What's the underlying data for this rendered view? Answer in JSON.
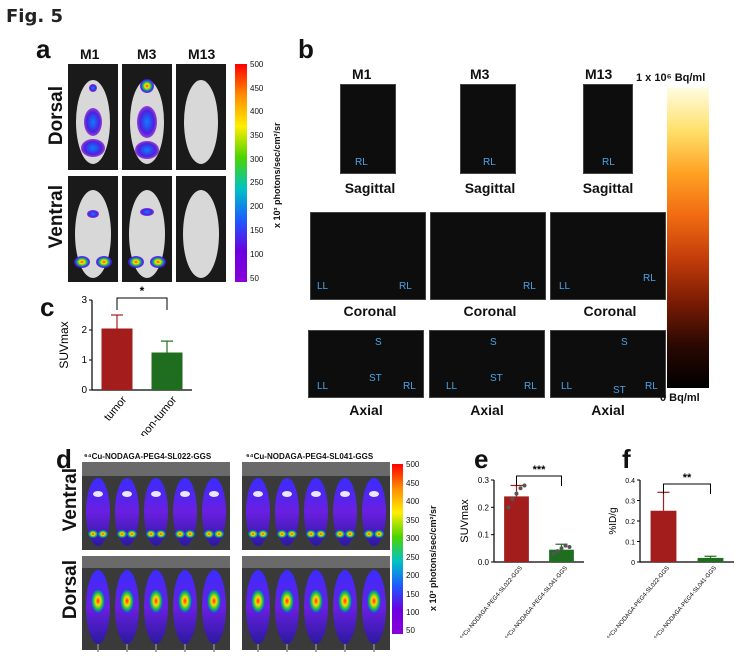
{
  "figure_title": "Fig. 5",
  "panels": {
    "a": {
      "letter": "a",
      "columns": [
        "M1",
        "M3",
        "M13"
      ],
      "rows": [
        "Dorsal",
        "Ventral"
      ],
      "colorbar": {
        "label": "x 10³ photons/sec/cm²/sr",
        "ticks": [
          "500",
          "450",
          "400",
          "350",
          "300",
          "250",
          "200",
          "150",
          "100",
          "50"
        ]
      }
    },
    "b": {
      "letter": "b",
      "columns": [
        "M1",
        "M3",
        "M13"
      ],
      "rows": [
        "Sagittal",
        "Coronal",
        "Axial"
      ],
      "tile_labels": {
        "sagittal": [
          "RL",
          "RL",
          "RL"
        ],
        "coronal": [
          [
            "LL",
            "RL"
          ],
          [
            "",
            "RL"
          ],
          [
            "LL",
            "RL"
          ]
        ],
        "axial": [
          [
            "S",
            "ST",
            "LL",
            "RL"
          ],
          [
            "S",
            "ST",
            "LL",
            "RL"
          ],
          [
            "S",
            "ST",
            "LL",
            "RL"
          ]
        ]
      },
      "scale_max": "1 x 10⁶ Bq/ml",
      "scale_min": "0 Bq/ml"
    },
    "d": {
      "letter": "d",
      "col_titles": [
        "⁶⁴Cu-NODAGA-PEG4-SL022-GGS",
        "⁶⁴Cu-NODAGA-PEG4-SL041-GGS"
      ],
      "rows": [
        "Ventral",
        "Dorsal"
      ],
      "colorbar": {
        "label": "x 10³ photons/sec/cm²/sr",
        "ticks": [
          "500",
          "450",
          "400",
          "350",
          "300",
          "250",
          "200",
          "150",
          "100",
          "50"
        ]
      }
    },
    "c": {
      "letter": "c",
      "significance": "*"
    },
    "e": {
      "letter": "e",
      "significance": "***"
    },
    "f": {
      "letter": "f",
      "significance": "**"
    }
  },
  "chart_data": [
    {
      "id": "c",
      "type": "bar",
      "categories": [
        "tumor",
        "non-tumor"
      ],
      "values": [
        2.05,
        1.25
      ],
      "errors": [
        0.45,
        0.38
      ],
      "colors": [
        "#a31d1d",
        "#1f6e1f"
      ],
      "ylabel": "SUVmax",
      "ylim": [
        0,
        3
      ],
      "yticks": [
        "0",
        "1",
        "2",
        "3"
      ]
    },
    {
      "id": "e",
      "type": "bar",
      "categories": [
        "⁶⁴Cu-NODAGA-PEG4-SL022-GGS",
        "⁶⁴Cu-NODAGA-PEG4-SL041-GGS"
      ],
      "values": [
        0.24,
        0.045
      ],
      "errors": [
        0.04,
        0.02
      ],
      "points": [
        [
          0.2,
          0.23,
          0.25,
          0.27,
          0.28
        ],
        [
          0.03,
          0.04,
          0.05,
          0.06,
          0.055
        ]
      ],
      "colors": [
        "#a31d1d",
        "#1f6e1f"
      ],
      "ylabel": "SUVmax",
      "ylim": [
        0,
        0.3
      ],
      "yticks": [
        "0.0",
        "0.1",
        "0.2",
        "0.3"
      ]
    },
    {
      "id": "f",
      "type": "bar",
      "categories": [
        "⁶⁴Cu-NODAGA-PEG4-SL022-GGS",
        "⁶⁴Cu-NODAGA-PEG4-SL041-GGS"
      ],
      "values": [
        0.25,
        0.02
      ],
      "errors": [
        0.09,
        0.008
      ],
      "colors": [
        "#a31d1d",
        "#1f6e1f"
      ],
      "ylabel": "%ID/g",
      "ylim": [
        0,
        0.4
      ],
      "yticks": [
        "0",
        "0.1",
        "0.2",
        "0.3",
        "0.4"
      ]
    }
  ]
}
